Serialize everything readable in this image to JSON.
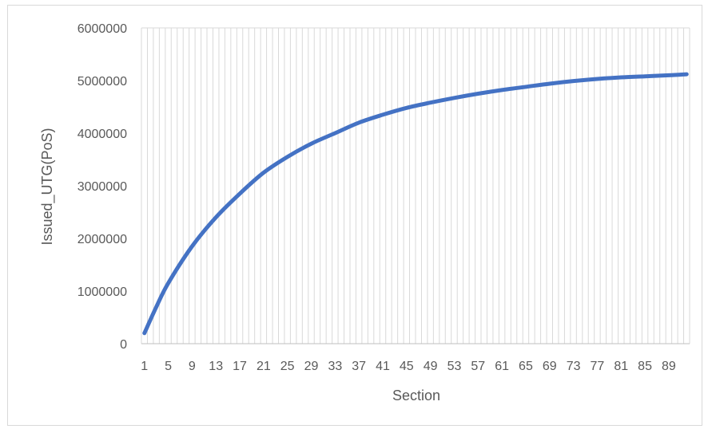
{
  "chart_data": {
    "type": "line",
    "title": "",
    "xlabel": "Section",
    "ylabel": "Issued_UTG(PoS)",
    "x_range": [
      1,
      92
    ],
    "ylim": [
      0,
      6000000
    ],
    "y_ticks": [
      "0",
      "1000000",
      "2000000",
      "3000000",
      "4000000",
      "5000000",
      "6000000"
    ],
    "x_ticks": [
      "1",
      "5",
      "9",
      "13",
      "17",
      "21",
      "25",
      "29",
      "33",
      "37",
      "41",
      "45",
      "49",
      "53",
      "57",
      "61",
      "65",
      "69",
      "73",
      "77",
      "81",
      "85",
      "89"
    ],
    "grid": "vertical-per-section",
    "legend": "none",
    "line_color": "#4472C4",
    "series": [
      {
        "x": [
          1,
          3,
          5,
          9,
          13,
          17,
          21,
          25,
          29,
          33,
          37,
          41,
          45,
          49,
          53,
          57,
          61,
          65,
          69,
          73,
          77,
          81,
          85,
          89,
          92
        ],
        "values": [
          200000,
          700000,
          1150000,
          1850000,
          2400000,
          2850000,
          3250000,
          3550000,
          3800000,
          4000000,
          4200000,
          4350000,
          4480000,
          4580000,
          4670000,
          4750000,
          4820000,
          4880000,
          4940000,
          4990000,
          5030000,
          5060000,
          5080000,
          5100000,
          5120000
        ]
      }
    ]
  }
}
